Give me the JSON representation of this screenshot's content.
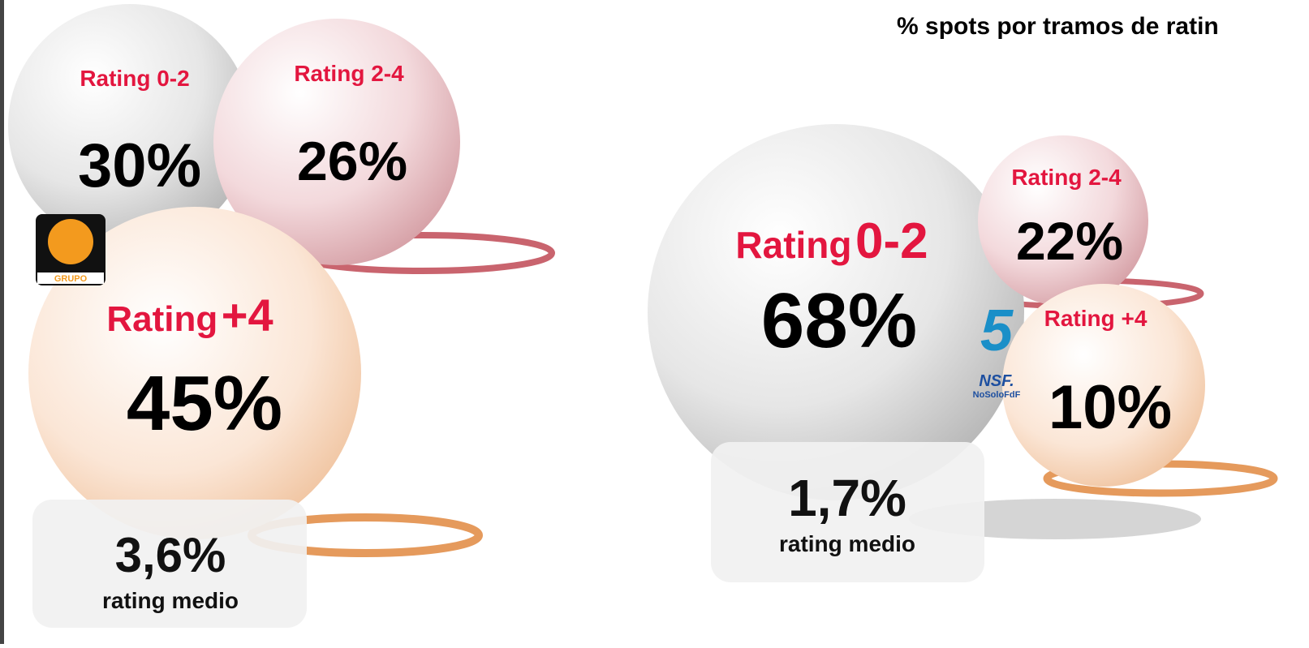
{
  "title": "% spots por tramos de ratin",
  "left": {
    "bubbles": [
      {
        "label": "Rating 0-2",
        "percent": "30%"
      },
      {
        "label": "Rating 2-4",
        "percent": "26%"
      },
      {
        "label": {
          "word": "Rating",
          "range": "+4"
        },
        "percent": "45%"
      }
    ],
    "logo": "GRUPO",
    "average": {
      "value": "3,6%",
      "caption": "rating medio"
    }
  },
  "right": {
    "bubbles": [
      {
        "label": {
          "word": "Rating",
          "range": "0-2"
        },
        "percent": "68%"
      },
      {
        "label": "Rating 2-4",
        "percent": "22%"
      },
      {
        "label": "Rating +4",
        "percent": "10%"
      }
    ],
    "logo": {
      "mark": "NSF.",
      "text": "NoSoloFdF"
    },
    "average": {
      "value": "1,7%",
      "caption": "rating medio"
    }
  }
}
